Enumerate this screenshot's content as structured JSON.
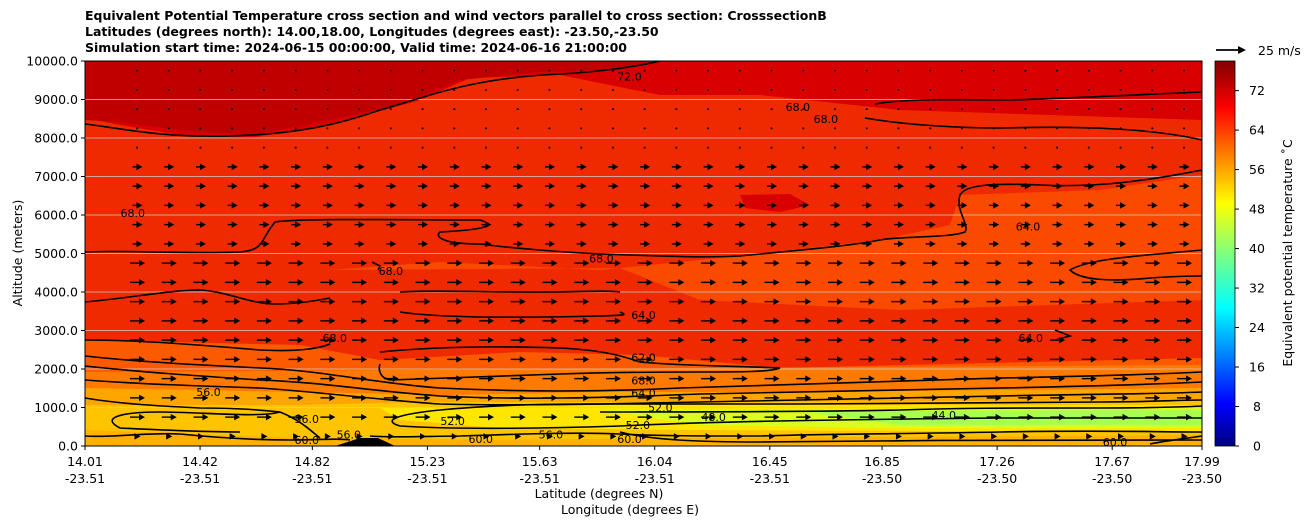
{
  "figure": {
    "title_line1": "Equivalent Potential Temperature cross section and wind vectors parallel to cross section: CrosssectionB",
    "title_line2": "Latitudes (degrees north): 14.00,18.00, Longitudes (degrees east): -23.50,-23.50",
    "title_line3": "Simulation start time: 2024-06-15 00:00:00, Valid time: 2024-06-16 21:00:00"
  },
  "chart_data": {
    "type": "heatmap",
    "subtype": "filled contour cross section with wind vectors",
    "ylabel": "Altitude (meters)",
    "xlabel_line1": "Latitude (degrees N)",
    "xlabel_line2": "Longitude (degrees E)",
    "y_ticks": [
      "0.0",
      "1000.0",
      "2000.0",
      "3000.0",
      "4000.0",
      "5000.0",
      "6000.0",
      "7000.0",
      "8000.0",
      "9000.0",
      "10000.0"
    ],
    "ylim": [
      0,
      10000
    ],
    "x_ticks_lat": [
      "14.01",
      "14.42",
      "14.82",
      "15.23",
      "15.63",
      "16.04",
      "16.45",
      "16.85",
      "17.26",
      "17.67",
      "17.99"
    ],
    "x_ticks_lon": [
      "-23.51",
      "-23.51",
      "-23.51",
      "-23.51",
      "-23.51",
      "-23.51",
      "-23.51",
      "-23.50",
      "-23.50",
      "-23.50",
      "-23.50"
    ],
    "xlim_lat": [
      14.01,
      17.99
    ],
    "grid": "horizontal",
    "colorbar": {
      "label": "Equivalent potential temperature ˚C",
      "ticks": [
        "0",
        "8",
        "16",
        "24",
        "32",
        "40",
        "48",
        "56",
        "64",
        "72"
      ],
      "range": [
        0,
        78
      ],
      "colormap": "jet"
    },
    "quiver_key": {
      "label": "25 m/s"
    },
    "contour_labels": [
      {
        "text": "72.0",
        "lat": 15.95,
        "alt": 9600
      },
      {
        "text": "68.0",
        "lat": 14.18,
        "alt": 6050
      },
      {
        "text": "68.0",
        "lat": 15.85,
        "alt": 4870
      },
      {
        "text": "68.0",
        "lat": 15.1,
        "alt": 4550
      },
      {
        "text": "68.0",
        "lat": 16.55,
        "alt": 8800
      },
      {
        "text": "68.0",
        "lat": 16.65,
        "alt": 8500
      },
      {
        "text": "68.0",
        "lat": 14.9,
        "alt": 2800
      },
      {
        "text": "64.0",
        "lat": 16.0,
        "alt": 3400
      },
      {
        "text": "64.0",
        "lat": 17.37,
        "alt": 5700
      },
      {
        "text": "64.0",
        "lat": 17.38,
        "alt": 2800
      },
      {
        "text": "62.0",
        "lat": 16.0,
        "alt": 2300
      },
      {
        "text": "68.0",
        "lat": 16.0,
        "alt": 1700
      },
      {
        "text": "64.0",
        "lat": 16.0,
        "alt": 1380
      },
      {
        "text": "52.0",
        "lat": 16.06,
        "alt": 1000
      },
      {
        "text": "52.0",
        "lat": 15.98,
        "alt": 550
      },
      {
        "text": "56.0",
        "lat": 14.45,
        "alt": 1400
      },
      {
        "text": "56.0",
        "lat": 14.8,
        "alt": 700
      },
      {
        "text": "56.0",
        "lat": 14.95,
        "alt": 300
      },
      {
        "text": "52.0",
        "lat": 15.32,
        "alt": 650
      },
      {
        "text": "56.0",
        "lat": 15.67,
        "alt": 300
      },
      {
        "text": "48.0",
        "lat": 16.25,
        "alt": 750
      },
      {
        "text": "44.0",
        "lat": 17.07,
        "alt": 800
      },
      {
        "text": "60.0",
        "lat": 14.8,
        "alt": 150
      },
      {
        "text": "60.0",
        "lat": 15.42,
        "alt": 180
      },
      {
        "text": "60.0",
        "lat": 15.95,
        "alt": 180
      },
      {
        "text": "60.0",
        "lat": 17.68,
        "alt": 100
      }
    ],
    "field_bands": [
      {
        "theta_C": 75,
        "alt_range": [
          7500,
          10000
        ],
        "where": "northwest upper region"
      },
      {
        "theta_C": 70,
        "alt_range": [
          4000,
          9000
        ]
      },
      {
        "theta_C": 67,
        "alt_range": [
          2000,
          5000
        ]
      },
      {
        "theta_C": 62,
        "alt_range": [
          1500,
          2000
        ]
      },
      {
        "theta_C": 56,
        "alt_range": [
          1000,
          1500
        ]
      },
      {
        "theta_C": 46,
        "alt_range": [
          200,
          1000
        ],
        "where": "north low levels"
      }
    ],
    "wind": "mostly southward-to-northward arrows along section, strongest 800–4500 m"
  }
}
